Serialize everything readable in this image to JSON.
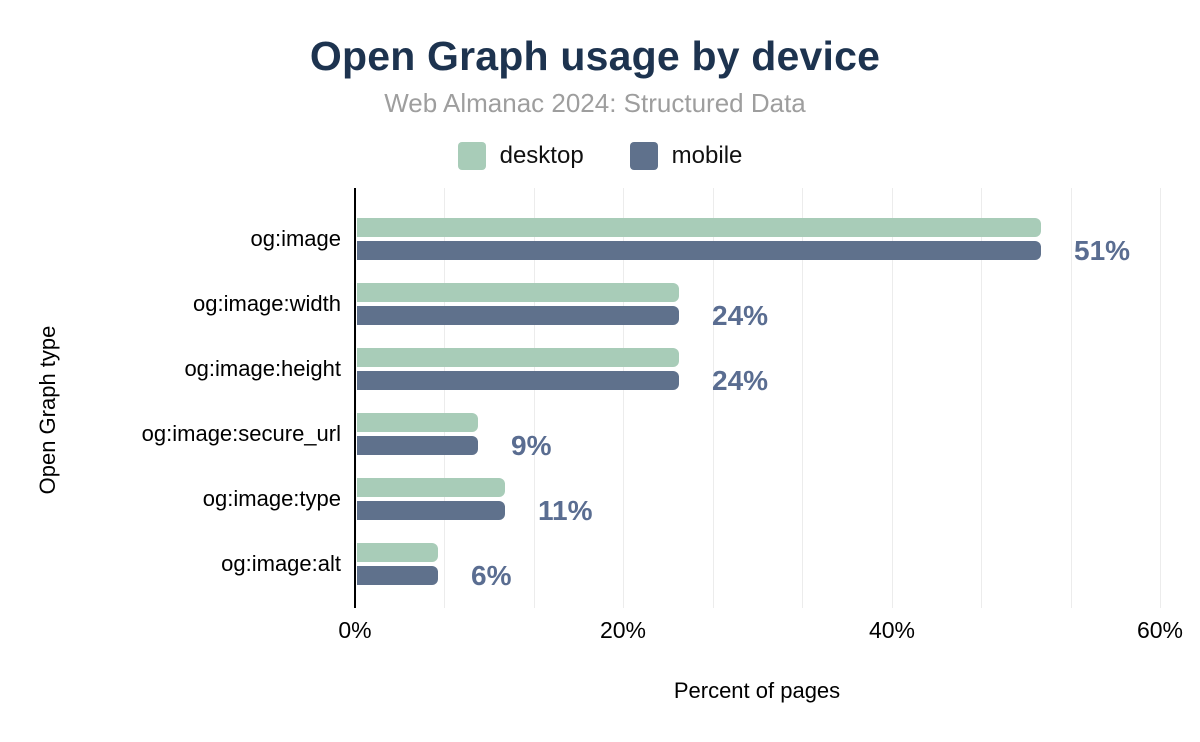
{
  "title": "Open Graph usage by device",
  "subtitle": "Web Almanac 2024: Structured Data",
  "legend": {
    "items": [
      {
        "label": "desktop",
        "color": "#a8ccb8"
      },
      {
        "label": "mobile",
        "color": "#5f718c"
      }
    ]
  },
  "colors": {
    "title": "#1d334f",
    "subtitle": "#9e9e9e",
    "desktop_bar": "#a8ccb8",
    "mobile_bar": "#5f718c",
    "data_label": "#5a6d91",
    "axis": "#000000",
    "gridline": "#ececec",
    "tick_text": "#000000"
  },
  "chart_data": {
    "type": "bar",
    "orientation": "horizontal",
    "title": "Open Graph usage by device",
    "subtitle": "Web Almanac 2024: Structured Data",
    "xlabel": "Percent of pages",
    "ylabel": "Open Graph type",
    "categories": [
      "og:image",
      "og:image:width",
      "og:image:height",
      "og:image:secure_url",
      "og:image:type",
      "og:image:alt"
    ],
    "series": [
      {
        "name": "desktop",
        "color": "#a8ccb8",
        "values": [
          51,
          24,
          24,
          9,
          11,
          6
        ]
      },
      {
        "name": "mobile",
        "color": "#5f718c",
        "values": [
          51,
          24,
          24,
          9,
          11,
          6
        ]
      }
    ],
    "data_labels": [
      "51%",
      "24%",
      "24%",
      "9%",
      "11%",
      "6%"
    ],
    "xtick_labels": [
      "0%",
      "20%",
      "40%",
      "60%"
    ],
    "xtick_values": [
      0,
      20,
      40,
      60
    ],
    "xlim": [
      0,
      60
    ],
    "gridline_step_pct": 6.667,
    "grid": "vertical",
    "legend_position": "top"
  }
}
